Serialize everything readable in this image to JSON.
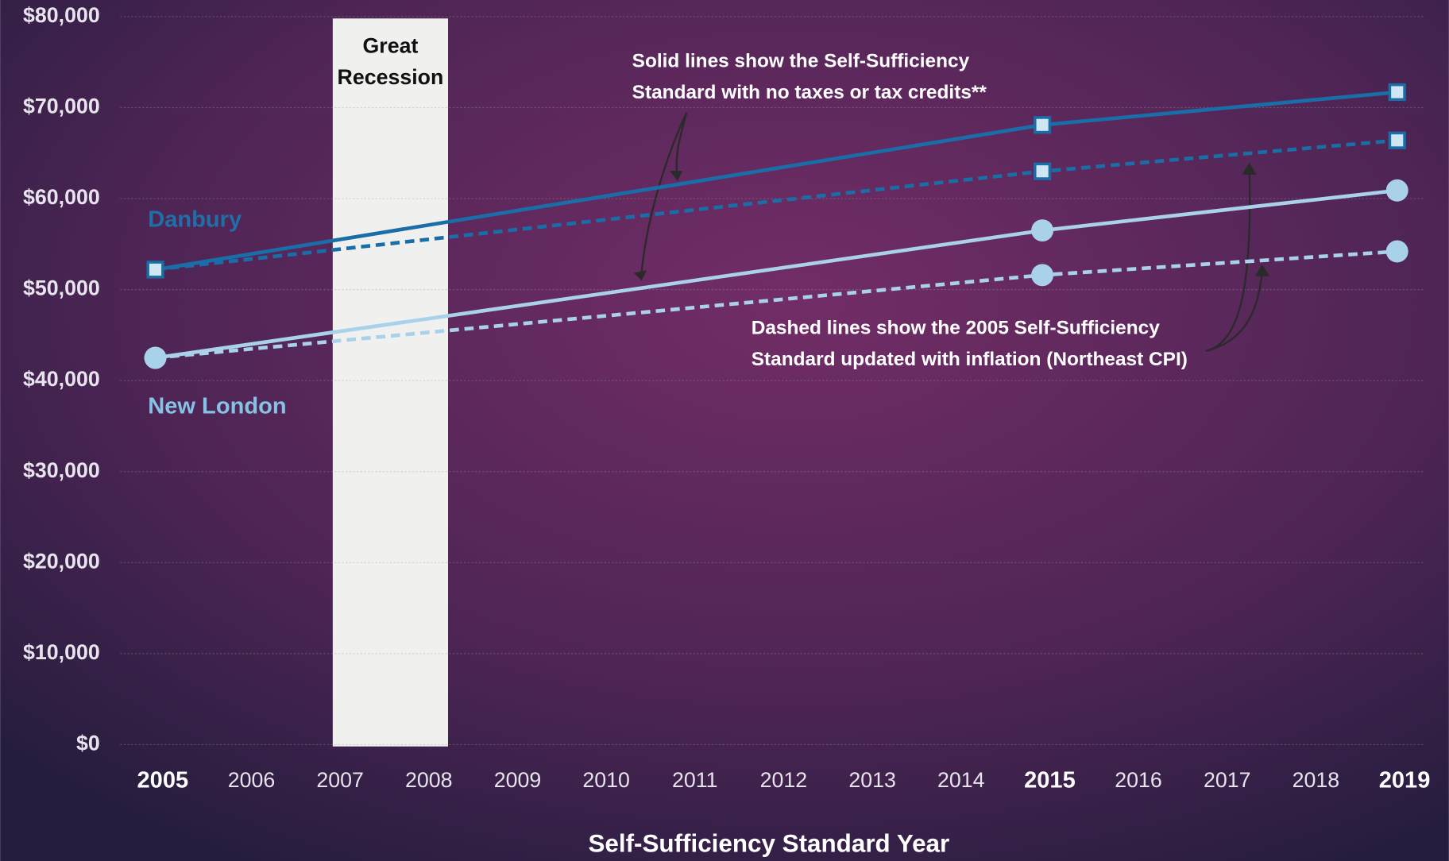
{
  "chart_data": {
    "type": "line",
    "x_label": "Self-Sufficiency Standard Year",
    "x": [
      2005,
      2015,
      2019
    ],
    "series": [
      {
        "name": "Danbury",
        "color": "#1a6ea8",
        "label_color": "#1f6fa8",
        "marker": "square",
        "values": [
          52200,
          68100,
          71700
        ],
        "dashed_values": [
          52200,
          63000,
          66400
        ]
      },
      {
        "name": "New London",
        "color": "#a9d2ea",
        "label_color": "#86c2e4",
        "marker": "circle",
        "values": [
          42500,
          56500,
          60900
        ],
        "dashed_values": [
          42500,
          51600,
          54200
        ]
      }
    ],
    "xlim": [
      2005,
      2019
    ],
    "xticks": [
      2005,
      2006,
      2007,
      2008,
      2009,
      2010,
      2011,
      2012,
      2013,
      2014,
      2015,
      2016,
      2017,
      2018,
      2019
    ],
    "bold_xticks": [
      2005,
      2015,
      2019
    ],
    "ylim": [
      0,
      80000
    ],
    "yticks": [
      {
        "value": 0,
        "label": "$0"
      },
      {
        "value": 10000,
        "label": "$10,000"
      },
      {
        "value": 20000,
        "label": "$20,000"
      },
      {
        "value": 30000,
        "label": "$30,000"
      },
      {
        "value": 40000,
        "label": "$40,000"
      },
      {
        "value": 50000,
        "label": "$50,000"
      },
      {
        "value": 60000,
        "label": "$60,000"
      },
      {
        "value": 70000,
        "label": "$70,000"
      },
      {
        "value": 80000,
        "label": "$80,000"
      }
    ],
    "grid": true,
    "shaded_region": {
      "label": [
        "Great",
        "Recession"
      ],
      "xrange": [
        2007,
        2008.3
      ]
    },
    "notes": [
      [
        "Solid lines show the Self-Sufficiency",
        "Standard with no taxes or tax credits**"
      ],
      [
        "Dashed lines show the 2005 Self-Sufficiency",
        "Standard updated with inflation (Northeast CPI)"
      ]
    ]
  }
}
